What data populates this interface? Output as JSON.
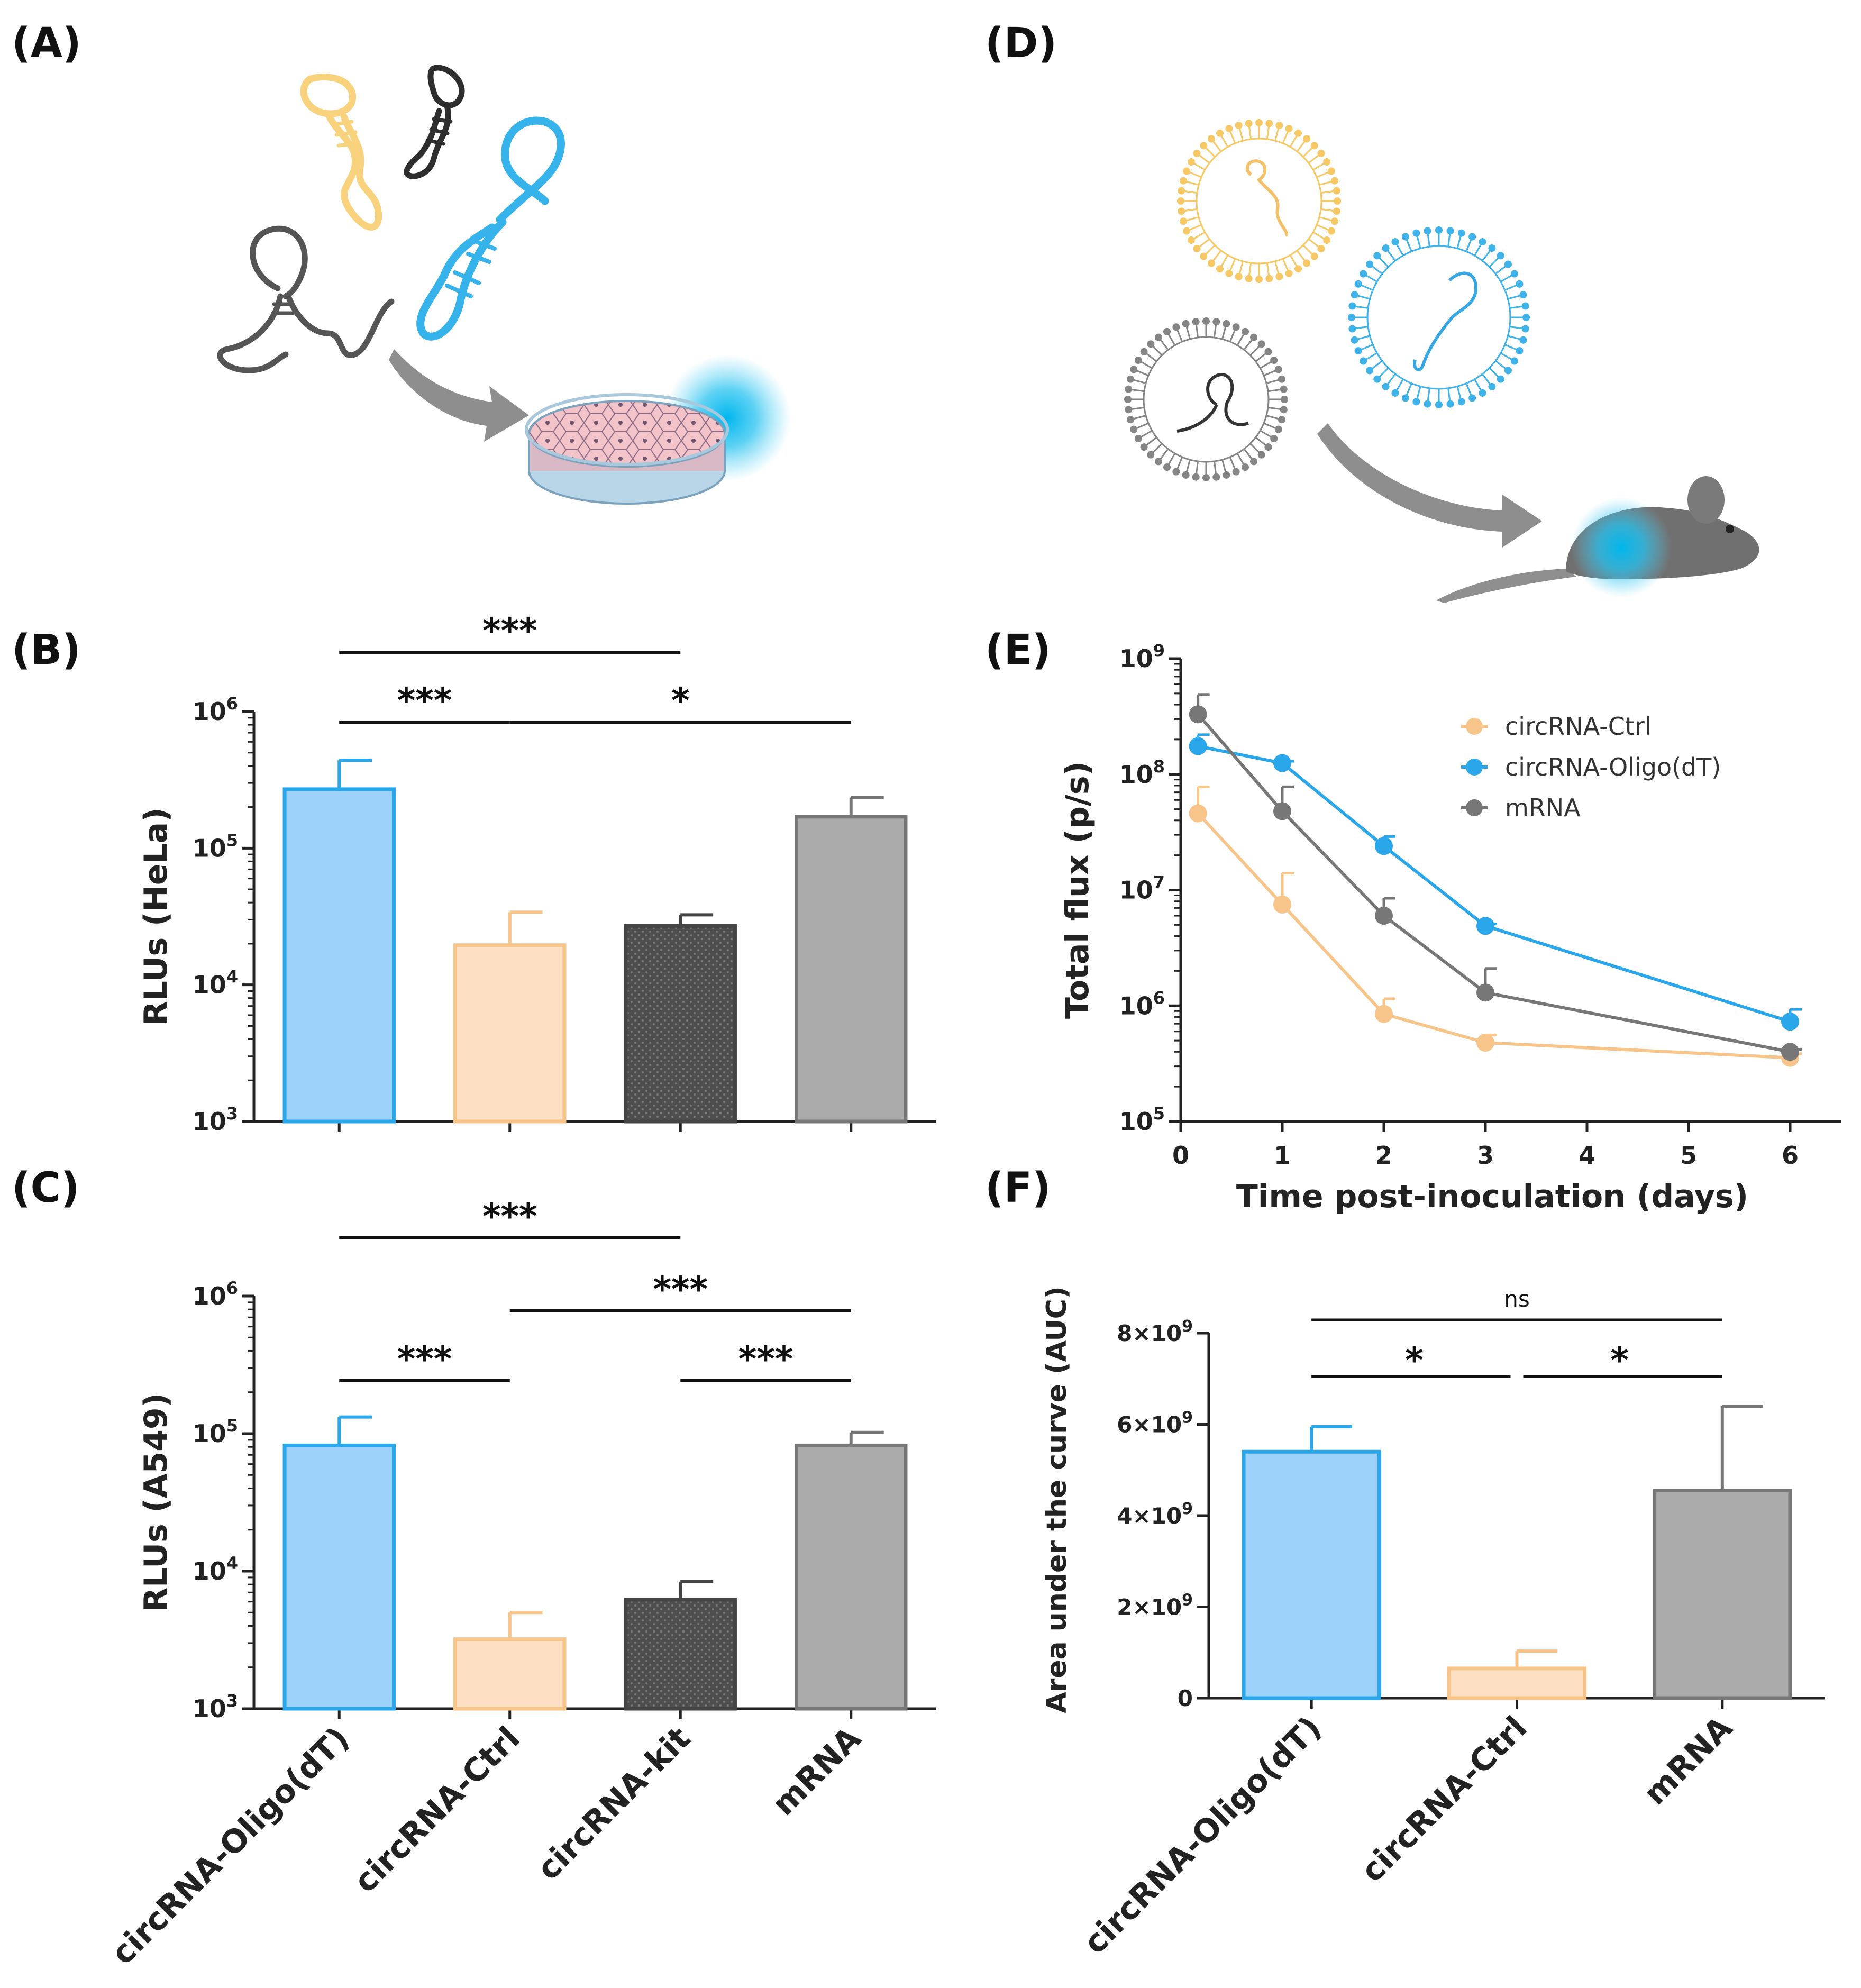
{
  "panels": {
    "A": {
      "label": "(A)"
    },
    "B": {
      "label": "(B)"
    },
    "C": {
      "label": "(C)"
    },
    "D": {
      "label": "(D)"
    },
    "E": {
      "label": "(E)"
    },
    "F": {
      "label": "(F)"
    }
  },
  "colors": {
    "oligo": "#2aa7ea",
    "oligo_fill": "#9dd3fb",
    "ctrl": "#f7c489",
    "ctrl_fill": "#fde0c3",
    "kit": "#444444",
    "kit_fill": "#5a5a5a",
    "mrna": "#777777",
    "mrna_fill": "#ababab"
  },
  "chart_data": [
    {
      "id": "B",
      "type": "bar",
      "ylabel": "RLUs (HeLa)",
      "yscale": "log",
      "ylim": [
        1000,
        1000000
      ],
      "categories": [
        "circRNA-Oligo(dT)",
        "circRNA-Ctrl",
        "circRNA-kit",
        "mRNA"
      ],
      "values": [
        270000,
        19500,
        27000,
        170000
      ],
      "errors": [
        440000,
        34000,
        32500,
        235000
      ],
      "yticks": [
        {
          "base": "10",
          "exp": "3"
        },
        {
          "base": "10",
          "exp": "4"
        },
        {
          "base": "10",
          "exp": "5"
        },
        {
          "base": "10",
          "exp": "6"
        }
      ],
      "significance": [
        {
          "from": 0,
          "to": 2,
          "label": "***"
        },
        {
          "from": 0,
          "to": 1,
          "label": "***"
        },
        {
          "from": 1,
          "to": 3,
          "label": "*"
        }
      ]
    },
    {
      "id": "C",
      "type": "bar",
      "ylabel": "RLUs (A549)",
      "yscale": "log",
      "ylim": [
        1000,
        1000000
      ],
      "categories": [
        "circRNA-Oligo(dT)",
        "circRNA-Ctrl",
        "circRNA-kit",
        "mRNA"
      ],
      "values": [
        82000,
        3200,
        6200,
        82000
      ],
      "errors": [
        132000,
        5000,
        8400,
        102000
      ],
      "yticks": [
        {
          "base": "10",
          "exp": "3"
        },
        {
          "base": "10",
          "exp": "4"
        },
        {
          "base": "10",
          "exp": "5"
        },
        {
          "base": "10",
          "exp": "6"
        }
      ],
      "significance": [
        {
          "from": 0,
          "to": 2,
          "label": "***"
        },
        {
          "from": 1,
          "to": 3,
          "label": "***"
        },
        {
          "from": 0,
          "to": 1,
          "label": "***"
        },
        {
          "from": 2,
          "to": 3,
          "label": "***"
        }
      ]
    },
    {
      "id": "E",
      "type": "line",
      "xlabel": "Time post-inoculation (days)",
      "ylabel": "Total flux (p/s)",
      "yscale": "log",
      "xlim": [
        0,
        6.5
      ],
      "ylim": [
        100000,
        1000000000
      ],
      "xticks": [
        "0",
        "1",
        "2",
        "3",
        "4",
        "5",
        "6"
      ],
      "yticks": [
        {
          "base": "10",
          "exp": "5"
        },
        {
          "base": "10",
          "exp": "6"
        },
        {
          "base": "10",
          "exp": "7"
        },
        {
          "base": "10",
          "exp": "8"
        },
        {
          "base": "10",
          "exp": "9"
        }
      ],
      "legend_position": "top-right",
      "series": [
        {
          "name": "circRNA-Ctrl",
          "x": [
            0.17,
            1,
            2,
            3,
            6
          ],
          "y": [
            46000000,
            7500000,
            850000,
            480000,
            355000
          ],
          "err": [
            78000000,
            14000000,
            1150000,
            560000,
            385000
          ]
        },
        {
          "name": "circRNA-Oligo(dT)",
          "x": [
            0.17,
            1,
            2,
            3,
            6
          ],
          "y": [
            175000000,
            125000000,
            24000000,
            4900000,
            730000
          ],
          "err": [
            220000000,
            130000000,
            29000000,
            5100000,
            930000
          ]
        },
        {
          "name": "mRNA",
          "x": [
            0.17,
            1,
            2,
            3,
            6
          ],
          "y": [
            330000000,
            48000000,
            6000000,
            1300000,
            400000
          ],
          "err": [
            490000000,
            78000000,
            8500000,
            2100000,
            420000
          ]
        }
      ]
    },
    {
      "id": "F",
      "type": "bar",
      "ylabel": "Area under the curve (AUC)",
      "ylim": [
        0,
        8000000000
      ],
      "categories": [
        "circRNA-Oligo(dT)",
        "circRNA-Ctrl",
        "mRNA"
      ],
      "values": [
        5400000000,
        650000000,
        4550000000
      ],
      "errors": [
        5950000000,
        1030000000,
        6400000000
      ],
      "yticks": [
        {
          "value": 0,
          "label": "0",
          "exp": ""
        },
        {
          "value": 2000000000,
          "label": "2×10",
          "exp": "9"
        },
        {
          "value": 4000000000,
          "label": "4×10",
          "exp": "9"
        },
        {
          "value": 6000000000,
          "label": "6×10",
          "exp": "9"
        },
        {
          "value": 8000000000,
          "label": "8×10",
          "exp": "9"
        }
      ],
      "significance": [
        {
          "from": 0,
          "to": 2,
          "label": "ns"
        },
        {
          "from": 0,
          "to": 1,
          "label": "*"
        },
        {
          "from": 1,
          "to": 2,
          "label": "*"
        }
      ]
    }
  ]
}
